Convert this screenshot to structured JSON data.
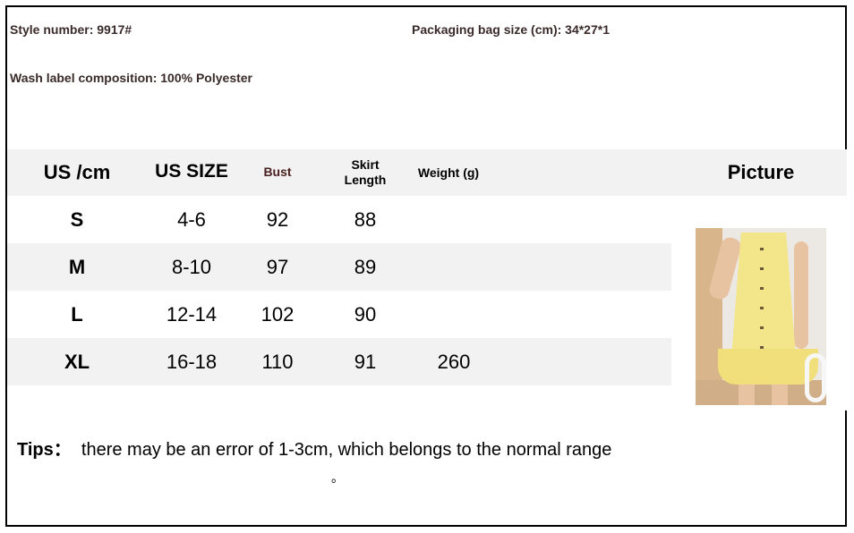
{
  "meta": {
    "style_number": "Style number: 9917#",
    "packaging": "Packaging bag size (cm): 34*27*1",
    "wash_label": "Wash label composition: 100% Polyester"
  },
  "table": {
    "headers": [
      "US /cm",
      "US SIZE",
      "Bust",
      "Skirt",
      "Length",
      "Weight (g)",
      "Picture"
    ],
    "rows": [
      {
        "size": "S",
        "us_size": "4-6",
        "bust": "92",
        "skirt_length": "88",
        "weight": ""
      },
      {
        "size": "M",
        "us_size": "8-10",
        "bust": "97",
        "skirt_length": "89",
        "weight": ""
      },
      {
        "size": "L",
        "us_size": "12-14",
        "bust": "102",
        "skirt_length": "90",
        "weight": ""
      },
      {
        "size": "XL",
        "us_size": "16-18",
        "bust": "110",
        "skirt_length": "91",
        "weight": "260"
      }
    ]
  },
  "picture": {
    "description_icon": "yellow-sleeveless-button-dress-photo",
    "dress_color": "#f3e58a"
  },
  "tips": {
    "label": "Tips：",
    "text": "there may be an error of 1-3cm, which belongs to the normal range",
    "trailing": "。"
  }
}
